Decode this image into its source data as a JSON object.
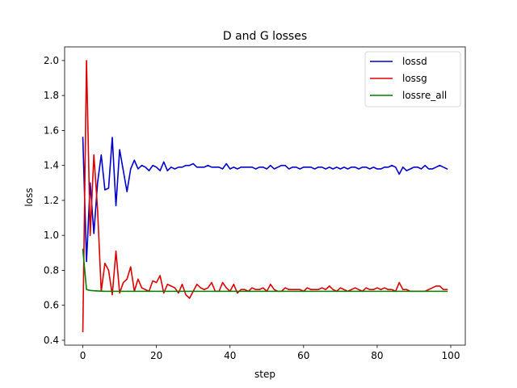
{
  "chart_data": {
    "type": "line",
    "title": "D and G losses",
    "xlabel": "step",
    "ylabel": "loss",
    "xlim": [
      -4.95,
      103.95
    ],
    "ylim": [
      0.372,
      2.078
    ],
    "xticks": [
      0,
      20,
      40,
      60,
      80,
      100
    ],
    "yticks": [
      0.4,
      0.6,
      0.8,
      1.0,
      1.2,
      1.4,
      1.6,
      1.8,
      2.0
    ],
    "xtick_labels": [
      "0",
      "20",
      "40",
      "60",
      "80",
      "100"
    ],
    "ytick_labels": [
      "0.4",
      "0.6",
      "0.8",
      "1.0",
      "1.2",
      "1.4",
      "1.6",
      "1.8",
      "2.0"
    ],
    "grid": false,
    "legend_position": "top-right",
    "series": [
      {
        "name": "lossd",
        "color": "#0000cc",
        "y": [
          1.56,
          0.85,
          1.3,
          1.01,
          1.3,
          1.46,
          1.26,
          1.27,
          1.56,
          1.17,
          1.49,
          1.37,
          1.25,
          1.38,
          1.43,
          1.38,
          1.4,
          1.39,
          1.37,
          1.4,
          1.39,
          1.37,
          1.42,
          1.37,
          1.39,
          1.38,
          1.39,
          1.39,
          1.4,
          1.4,
          1.41,
          1.39,
          1.39,
          1.39,
          1.4,
          1.39,
          1.39,
          1.39,
          1.38,
          1.41,
          1.38,
          1.39,
          1.38,
          1.39,
          1.39,
          1.39,
          1.39,
          1.38,
          1.39,
          1.39,
          1.38,
          1.4,
          1.38,
          1.39,
          1.4,
          1.4,
          1.38,
          1.39,
          1.39,
          1.38,
          1.39,
          1.39,
          1.39,
          1.38,
          1.39,
          1.39,
          1.38,
          1.39,
          1.38,
          1.39,
          1.38,
          1.39,
          1.38,
          1.39,
          1.39,
          1.38,
          1.39,
          1.39,
          1.38,
          1.39,
          1.38,
          1.38,
          1.39,
          1.39,
          1.4,
          1.39,
          1.35,
          1.39,
          1.37,
          1.38,
          1.39,
          1.39,
          1.38,
          1.4,
          1.38,
          1.38,
          1.39,
          1.4,
          1.39,
          1.38
        ]
      },
      {
        "name": "lossg",
        "color": "#dd0000",
        "y": [
          0.45,
          2.0,
          1.0,
          1.46,
          1.15,
          0.68,
          0.84,
          0.8,
          0.66,
          0.91,
          0.67,
          0.73,
          0.75,
          0.82,
          0.68,
          0.75,
          0.7,
          0.69,
          0.68,
          0.74,
          0.73,
          0.77,
          0.67,
          0.72,
          0.71,
          0.7,
          0.67,
          0.72,
          0.66,
          0.64,
          0.68,
          0.72,
          0.7,
          0.69,
          0.7,
          0.73,
          0.68,
          0.68,
          0.73,
          0.7,
          0.68,
          0.72,
          0.67,
          0.69,
          0.69,
          0.68,
          0.7,
          0.69,
          0.69,
          0.7,
          0.68,
          0.72,
          0.69,
          0.68,
          0.68,
          0.7,
          0.69,
          0.69,
          0.69,
          0.69,
          0.68,
          0.7,
          0.69,
          0.69,
          0.69,
          0.7,
          0.69,
          0.71,
          0.69,
          0.68,
          0.7,
          0.69,
          0.68,
          0.69,
          0.7,
          0.69,
          0.68,
          0.7,
          0.69,
          0.69,
          0.7,
          0.69,
          0.7,
          0.69,
          0.69,
          0.68,
          0.73,
          0.69,
          0.69,
          0.68,
          0.68,
          0.68,
          0.68,
          0.68,
          0.69,
          0.7,
          0.71,
          0.71,
          0.69,
          0.69
        ]
      },
      {
        "name": "lossre_all",
        "color": "#008000",
        "y": [
          0.92,
          0.69,
          0.685,
          0.683,
          0.682,
          0.681,
          0.68,
          0.68,
          0.68,
          0.68,
          0.68,
          0.68,
          0.68,
          0.68,
          0.68,
          0.68,
          0.68,
          0.68,
          0.68,
          0.68,
          0.68,
          0.68,
          0.68,
          0.68,
          0.68,
          0.68,
          0.68,
          0.68,
          0.68,
          0.68,
          0.68,
          0.68,
          0.68,
          0.68,
          0.68,
          0.68,
          0.68,
          0.68,
          0.68,
          0.68,
          0.68,
          0.68,
          0.68,
          0.68,
          0.68,
          0.68,
          0.68,
          0.68,
          0.68,
          0.68,
          0.68,
          0.68,
          0.68,
          0.68,
          0.68,
          0.68,
          0.68,
          0.68,
          0.68,
          0.68,
          0.68,
          0.68,
          0.68,
          0.68,
          0.68,
          0.68,
          0.68,
          0.68,
          0.68,
          0.68,
          0.68,
          0.68,
          0.68,
          0.68,
          0.68,
          0.68,
          0.68,
          0.68,
          0.68,
          0.68,
          0.68,
          0.68,
          0.68,
          0.68,
          0.68,
          0.68,
          0.68,
          0.68,
          0.68,
          0.68,
          0.68,
          0.68,
          0.68,
          0.68,
          0.68,
          0.68,
          0.68,
          0.68,
          0.68,
          0.68
        ]
      }
    ]
  }
}
